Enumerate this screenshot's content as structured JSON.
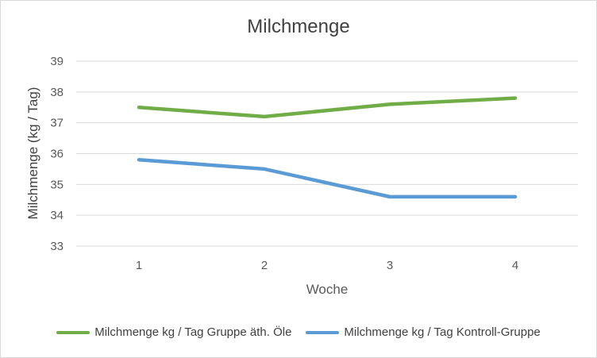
{
  "chart_data": {
    "type": "line",
    "title": "Milchmenge",
    "xlabel": "Woche",
    "ylabel": "Milchmenge (kg / Tag)",
    "categories": [
      "1",
      "2",
      "3",
      "4"
    ],
    "ylim": [
      33,
      39
    ],
    "yticks": [
      33,
      34,
      35,
      36,
      37,
      38,
      39
    ],
    "grid": true,
    "legend_position": "bottom",
    "series": [
      {
        "name": "Milchmenge kg / Tag Gruppe äth. Öle",
        "values": [
          37.5,
          37.2,
          37.6,
          37.8
        ],
        "color": "#70ad47"
      },
      {
        "name": "Milchmenge kg / Tag Kontroll-Gruppe",
        "values": [
          35.8,
          35.5,
          34.6,
          34.6
        ],
        "color": "#5b9bd5"
      }
    ]
  }
}
